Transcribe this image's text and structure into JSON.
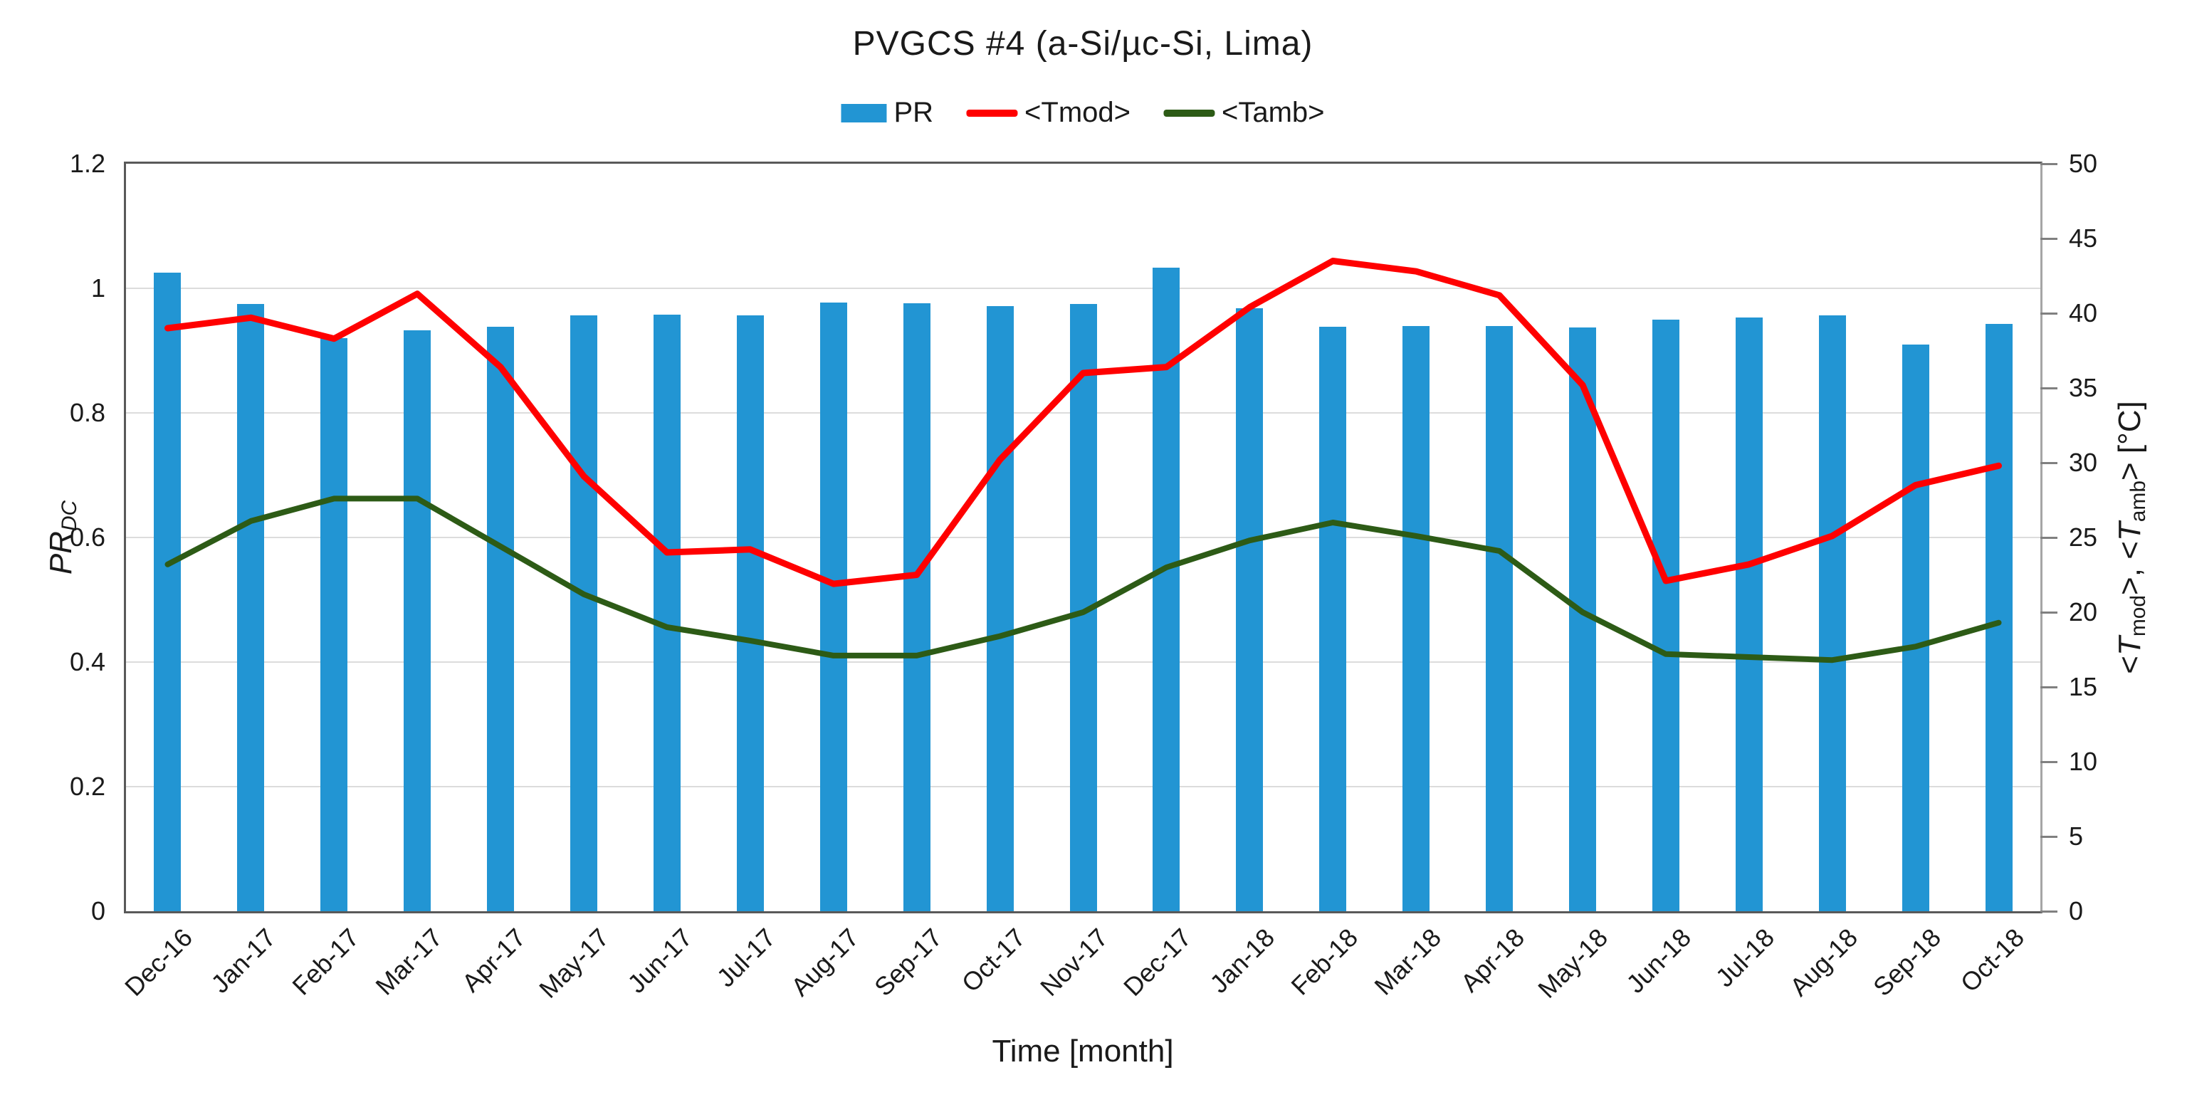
{
  "chart_data": {
    "type": "combo",
    "title": "PVGCS #4 (a-Si/µc-Si,  Lima)",
    "categories": [
      "Dec-16",
      "Jan-17",
      "Feb-17",
      "Mar-17",
      "Apr-17",
      "May-17",
      "Jun-17",
      "Jul-17",
      "Aug-17",
      "Sep-17",
      "Oct-17",
      "Nov-17",
      "Dec-17",
      "Jan-18",
      "Feb-18",
      "Mar-18",
      "Apr-18",
      "May-18",
      "Jun-18",
      "Jul-18",
      "Aug-18",
      "Sep-18",
      "Oct-18"
    ],
    "series": [
      {
        "name": "PR",
        "type": "bar",
        "axis": "left",
        "color": "#2295D3",
        "values": [
          1.025,
          0.975,
          0.92,
          0.933,
          0.938,
          0.957,
          0.958,
          0.957,
          0.977,
          0.976,
          0.971,
          0.975,
          1.033,
          0.968,
          0.938,
          0.94,
          0.939,
          0.937,
          0.95,
          0.953,
          0.957,
          0.91,
          0.943
        ]
      },
      {
        "name": "<Tmod>",
        "type": "line",
        "axis": "right",
        "color": "#FF0000",
        "values": [
          39.0,
          39.7,
          38.3,
          41.3,
          36.4,
          29.1,
          24.0,
          24.2,
          21.9,
          22.5,
          30.2,
          36.0,
          36.4,
          40.4,
          43.5,
          42.8,
          41.2,
          35.2,
          22.1,
          23.2,
          25.1,
          28.5,
          29.8
        ]
      },
      {
        "name": "<Tamb>",
        "type": "line",
        "axis": "right",
        "color": "#2D5B16",
        "values": [
          23.2,
          26.1,
          27.6,
          27.6,
          24.4,
          21.2,
          19.0,
          18.1,
          17.1,
          17.1,
          18.4,
          20.0,
          23.0,
          24.8,
          26.0,
          25.1,
          24.1,
          20.0,
          17.2,
          17.0,
          16.8,
          17.7,
          19.3
        ]
      }
    ],
    "axes": {
      "left": {
        "title_main": "PR",
        "title_sub": "DC",
        "min": 0,
        "max": 1.2,
        "tick_values": [
          0,
          0.2,
          0.4,
          0.6,
          0.8,
          1,
          1.2
        ],
        "tick_labels": [
          "0",
          "0.2",
          "0.4",
          "0.6",
          "0.8",
          "1",
          "1.2"
        ]
      },
      "right": {
        "title_parts": {
          "open1": "<",
          "t1": "T",
          "s1": "mod",
          "mid": ">, <",
          "t2": "T",
          "s2": "amb",
          "close": "> [°C]"
        },
        "min": 0,
        "max": 50,
        "tick_values": [
          0,
          5,
          10,
          15,
          20,
          25,
          30,
          35,
          40,
          45,
          50
        ],
        "tick_labels": [
          "0",
          "5",
          "10",
          "15",
          "20",
          "25",
          "30",
          "35",
          "40",
          "45",
          "50"
        ]
      },
      "x": {
        "title": "Time [month]"
      }
    },
    "layout": {
      "grid": true,
      "legend_position": "top",
      "bar_gap_ratio": 0.33
    },
    "colors": {
      "gridline": "#DCDCDC",
      "axis_border": "#595959",
      "right_border": "#A6A6A6",
      "tick_mark": "#808080",
      "text": "#1A1A1A"
    }
  }
}
